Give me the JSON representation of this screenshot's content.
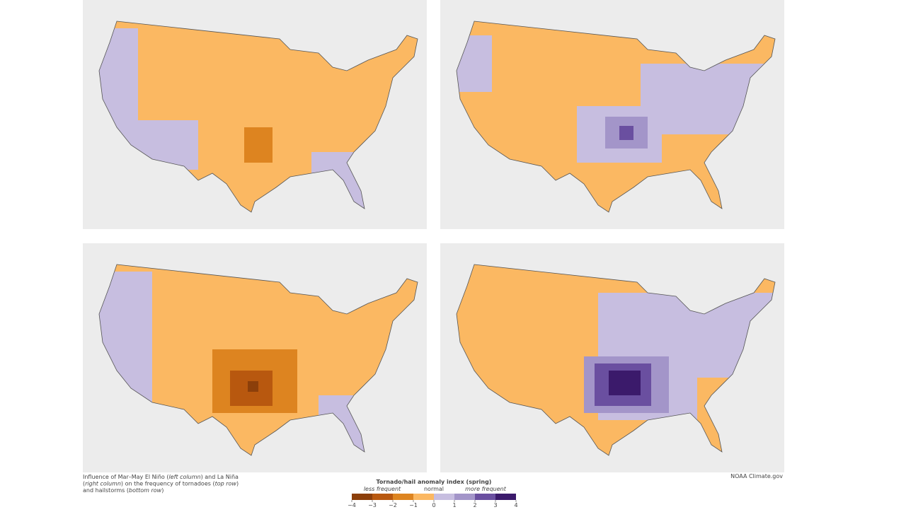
{
  "caption": [
    {
      "text": "Influence of Mar–May El Niño (",
      "italic": false
    },
    {
      "text": "left column",
      "italic": true
    },
    {
      "text": ") and La Niña",
      "italic": false
    },
    {
      "text": "(",
      "italic": false
    },
    {
      "text": "right column",
      "italic": true
    },
    {
      "text": ") on the frequency of tornadoes (",
      "italic": false
    },
    {
      "text": "top row",
      "italic": true
    },
    {
      "text": ")",
      "italic": false
    },
    {
      "text": "and hailstorms (",
      "italic": false
    },
    {
      "text": "bottom row",
      "italic": true
    },
    {
      "text": ")",
      "italic": false
    }
  ],
  "caption_lines": [
    [
      0,
      1,
      2
    ],
    [
      3,
      4,
      5,
      6,
      7
    ],
    [
      8,
      9,
      10
    ]
  ],
  "credit": "NOAA Climate.gov",
  "legend": {
    "title": "Tornado/hail anomaly index (spring)",
    "less": "less frequent",
    "normal": "normal",
    "more": "more frequent",
    "colors": [
      "#8c3f0a",
      "#b8580f",
      "#dd8420",
      "#fbb862",
      "#c7bee0",
      "#a395c9",
      "#6a4fa0",
      "#3b1a6b"
    ],
    "ticks": [
      {
        "value": -4,
        "label": "−4"
      },
      {
        "value": -3,
        "label": "−3"
      },
      {
        "value": -2,
        "label": "−2"
      },
      {
        "value": -1,
        "label": "−1"
      },
      0,
      1,
      2,
      3,
      4
    ]
  }
}
